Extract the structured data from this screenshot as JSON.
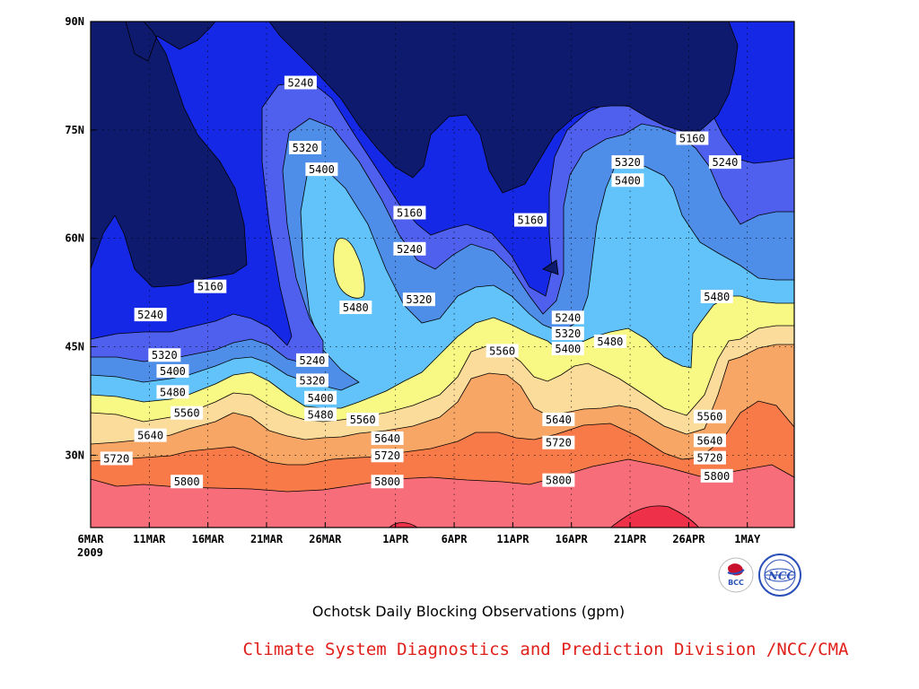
{
  "chart_data": {
    "type": "heatmap",
    "title": "Ochotsk Daily Blocking Observations (gpm)",
    "xlabel": "",
    "ylabel": "",
    "x_range": [
      "2009-03-06",
      "2009-05-05"
    ],
    "y_range": [
      20,
      90
    ],
    "x_ticks": [
      {
        "label": "6MAR",
        "day": 0
      },
      {
        "label": "11MAR",
        "day": 5
      },
      {
        "label": "16MAR",
        "day": 10
      },
      {
        "label": "21MAR",
        "day": 15
      },
      {
        "label": "26MAR",
        "day": 20
      },
      {
        "label": "1APR",
        "day": 26
      },
      {
        "label": "6APR",
        "day": 31
      },
      {
        "label": "11APR",
        "day": 36
      },
      {
        "label": "16APR",
        "day": 41
      },
      {
        "label": "21APR",
        "day": 46
      },
      {
        "label": "26APR",
        "day": 51
      },
      {
        "label": "1MAY",
        "day": 56
      }
    ],
    "year_label": "2009",
    "y_ticks": [
      {
        "label": "30N",
        "value": 30
      },
      {
        "label": "45N",
        "value": 45
      },
      {
        "label": "60N",
        "value": 60
      },
      {
        "label": "75N",
        "value": 75
      },
      {
        "label": "90N",
        "value": 90
      }
    ],
    "grid": true,
    "contour_levels": [
      5160,
      5240,
      5320,
      5400,
      5480,
      5560,
      5640,
      5720,
      5800,
      5880
    ],
    "level_colors": [
      "#0d1a6e",
      "#1428e6",
      "#5060ee",
      "#4f8ee8",
      "#62c2fa",
      "#f8f884",
      "#fbdc9a",
      "#f8a666",
      "#f77a48",
      "#f76e7a",
      "#ee3048"
    ],
    "contour_labels": [
      {
        "text": "5240",
        "day": 17.9,
        "lat": 81.5
      },
      {
        "text": "5320",
        "day": 18.3,
        "lat": 72.5
      },
      {
        "text": "5400",
        "day": 19.7,
        "lat": 69.5
      },
      {
        "text": "5160",
        "day": 27.2,
        "lat": 63.5
      },
      {
        "text": "5240",
        "day": 27.2,
        "lat": 58.5
      },
      {
        "text": "5320",
        "day": 28.0,
        "lat": 51.5
      },
      {
        "text": "5480",
        "day": 22.6,
        "lat": 50.4
      },
      {
        "text": "5160",
        "day": 37.5,
        "lat": 62.5
      },
      {
        "text": "5320",
        "day": 45.8,
        "lat": 70.5
      },
      {
        "text": "5400",
        "day": 45.8,
        "lat": 68.0
      },
      {
        "text": "5160",
        "day": 51.3,
        "lat": 73.8
      },
      {
        "text": "5240",
        "day": 54.1,
        "lat": 70.5
      },
      {
        "text": "5160",
        "day": 10.2,
        "lat": 53.3
      },
      {
        "text": "5240",
        "day": 5.1,
        "lat": 49.4
      },
      {
        "text": "5320",
        "day": 6.3,
        "lat": 43.8
      },
      {
        "text": "5400",
        "day": 7.0,
        "lat": 41.6
      },
      {
        "text": "5480",
        "day": 7.0,
        "lat": 38.7
      },
      {
        "text": "5560",
        "day": 8.2,
        "lat": 35.8
      },
      {
        "text": "5640",
        "day": 5.1,
        "lat": 32.7
      },
      {
        "text": "5720",
        "day": 2.2,
        "lat": 29.5
      },
      {
        "text": "5800",
        "day": 8.2,
        "lat": 26.3
      },
      {
        "text": "5240",
        "day": 18.9,
        "lat": 43.1
      },
      {
        "text": "5320",
        "day": 18.9,
        "lat": 40.3
      },
      {
        "text": "5400",
        "day": 19.6,
        "lat": 37.9
      },
      {
        "text": "5480",
        "day": 19.6,
        "lat": 35.6
      },
      {
        "text": "5560",
        "day": 23.2,
        "lat": 34.9
      },
      {
        "text": "5640",
        "day": 25.3,
        "lat": 32.3
      },
      {
        "text": "5720",
        "day": 25.3,
        "lat": 29.9
      },
      {
        "text": "5800",
        "day": 25.3,
        "lat": 26.3
      },
      {
        "text": "5560",
        "day": 35.1,
        "lat": 44.4
      },
      {
        "text": "5240",
        "day": 40.7,
        "lat": 49.0
      },
      {
        "text": "5320",
        "day": 40.7,
        "lat": 46.8
      },
      {
        "text": "5400",
        "day": 40.7,
        "lat": 44.7
      },
      {
        "text": "5480",
        "day": 44.3,
        "lat": 45.7
      },
      {
        "text": "5640",
        "day": 39.9,
        "lat": 34.9
      },
      {
        "text": "5720",
        "day": 39.9,
        "lat": 31.7
      },
      {
        "text": "5800",
        "day": 39.9,
        "lat": 26.5
      },
      {
        "text": "5480",
        "day": 53.4,
        "lat": 51.9
      },
      {
        "text": "5560",
        "day": 52.8,
        "lat": 35.3
      },
      {
        "text": "5640",
        "day": 52.8,
        "lat": 32.0
      },
      {
        "text": "5720",
        "day": 52.8,
        "lat": 29.6
      },
      {
        "text": "5800",
        "day": 53.4,
        "lat": 27.1
      }
    ]
  },
  "caption": {
    "title": "Ochotsk Daily Blocking Observations (gpm)",
    "credit": "Climate System Diagnostics and Prediction Division /NCC/CMA"
  },
  "logos": [
    {
      "name": "bcc-logo",
      "text": "BCC",
      "color": "#c8102e"
    },
    {
      "name": "ncc-logo",
      "text": "NCC",
      "color": "#2a4fb8"
    }
  ]
}
